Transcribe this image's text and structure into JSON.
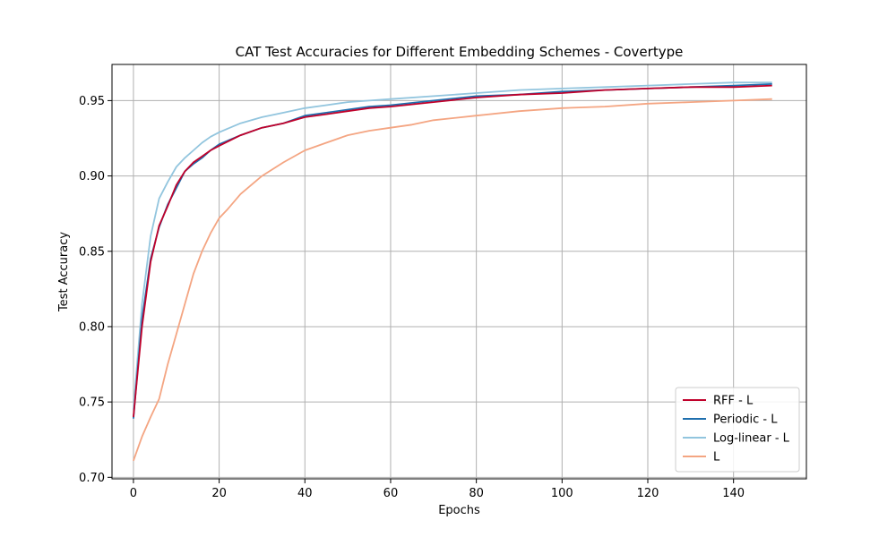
{
  "chart_data": {
    "type": "line",
    "title": "CAT Test Accuracies for Different Embedding Schemes - Covertype",
    "xlabel": "Epochs",
    "ylabel": "Test Accuracy",
    "xlim": [
      -5,
      157
    ],
    "ylim": [
      0.699,
      0.974
    ],
    "xticks": [
      0,
      20,
      40,
      60,
      80,
      100,
      120,
      140
    ],
    "yticks": [
      0.7,
      0.75,
      0.8,
      0.85,
      0.9,
      0.95
    ],
    "ytick_labels": [
      "0.70",
      "0.75",
      "0.80",
      "0.85",
      "0.90",
      "0.95"
    ],
    "xtick_labels": [
      "0",
      "20",
      "40",
      "60",
      "80",
      "100",
      "120",
      "140"
    ],
    "grid": true,
    "legend": "lower-right",
    "series": [
      {
        "name": "RFF - L",
        "color": "#c0002a",
        "x": [
          0,
          2,
          4,
          6,
          8,
          10,
          12,
          14,
          16,
          18,
          20,
          25,
          30,
          35,
          40,
          45,
          50,
          55,
          60,
          70,
          80,
          90,
          100,
          110,
          120,
          130,
          140,
          149
        ],
        "y": [
          0.74,
          0.8,
          0.843,
          0.867,
          0.88,
          0.894,
          0.903,
          0.909,
          0.913,
          0.917,
          0.92,
          0.927,
          0.932,
          0.935,
          0.939,
          0.941,
          0.943,
          0.945,
          0.946,
          0.949,
          0.952,
          0.954,
          0.955,
          0.957,
          0.958,
          0.959,
          0.959,
          0.96
        ]
      },
      {
        "name": "Periodic - L",
        "color": "#1f6fae",
        "x": [
          0,
          2,
          4,
          6,
          8,
          10,
          12,
          14,
          16,
          18,
          20,
          25,
          30,
          35,
          40,
          45,
          50,
          55,
          60,
          70,
          80,
          90,
          100,
          110,
          120,
          130,
          140,
          149
        ],
        "y": [
          0.739,
          0.805,
          0.845,
          0.866,
          0.881,
          0.892,
          0.903,
          0.908,
          0.912,
          0.917,
          0.921,
          0.927,
          0.932,
          0.935,
          0.94,
          0.942,
          0.944,
          0.946,
          0.947,
          0.95,
          0.953,
          0.954,
          0.956,
          0.957,
          0.958,
          0.959,
          0.96,
          0.961
        ]
      },
      {
        "name": "Log-linear - L",
        "color": "#92c5de",
        "x": [
          0,
          2,
          4,
          6,
          8,
          10,
          12,
          14,
          16,
          18,
          20,
          25,
          30,
          35,
          40,
          45,
          50,
          55,
          60,
          70,
          80,
          90,
          100,
          110,
          120,
          130,
          140,
          149
        ],
        "y": [
          0.745,
          0.815,
          0.86,
          0.885,
          0.896,
          0.906,
          0.912,
          0.917,
          0.922,
          0.926,
          0.929,
          0.935,
          0.939,
          0.942,
          0.945,
          0.947,
          0.949,
          0.95,
          0.951,
          0.953,
          0.955,
          0.957,
          0.958,
          0.959,
          0.96,
          0.961,
          0.962,
          0.962
        ]
      },
      {
        "name": "L",
        "color": "#f4a582",
        "x": [
          0,
          2,
          4,
          6,
          8,
          10,
          12,
          14,
          16,
          18,
          20,
          22,
          25,
          30,
          35,
          40,
          45,
          50,
          55,
          60,
          65,
          70,
          80,
          90,
          100,
          110,
          120,
          130,
          140,
          149
        ],
        "y": [
          0.711,
          0.727,
          0.74,
          0.752,
          0.775,
          0.795,
          0.815,
          0.835,
          0.85,
          0.862,
          0.872,
          0.878,
          0.888,
          0.9,
          0.909,
          0.917,
          0.922,
          0.927,
          0.93,
          0.932,
          0.934,
          0.937,
          0.94,
          0.943,
          0.945,
          0.946,
          0.948,
          0.949,
          0.95,
          0.951
        ]
      }
    ]
  }
}
